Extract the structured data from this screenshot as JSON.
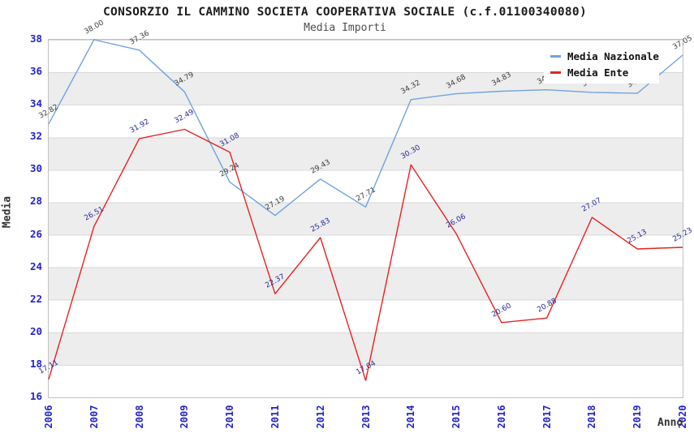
{
  "header": {
    "title": "CONSORZIO IL CAMMINO SOCIETA COOPERATIVA SOCIALE (c.f.01100340080)",
    "subtitle": "Media Importi"
  },
  "axes": {
    "y_title": "Media",
    "x_title": "Anno",
    "y_ticks": [
      38,
      36,
      34,
      32,
      30,
      28,
      26,
      24,
      22,
      20,
      18,
      16
    ],
    "x_ticks": [
      "2006",
      "2007",
      "2008",
      "2009",
      "2010",
      "2011",
      "2012",
      "2013",
      "2014",
      "2015",
      "2016",
      "2017",
      "2018",
      "2019",
      "2020"
    ]
  },
  "legend": {
    "items": [
      {
        "label": "Media Nazionale",
        "color": "#6fa3e0"
      },
      {
        "label": "Media Ente",
        "color": "#e62222"
      }
    ]
  },
  "colors": {
    "tick_label": "#2424cc",
    "nazionale_line": "#6fa3e0",
    "ente_line": "#e62222",
    "nazionale_point_label": "#3d3d3d",
    "ente_point_label": "#2a2a9a",
    "band_gray": "#ededed",
    "gridline": "#d8d8d8"
  },
  "chart_data": {
    "type": "line",
    "title": "CONSORZIO IL CAMMINO SOCIETA COOPERATIVA SOCIALE (c.f.01100340080)",
    "subtitle": "Media Importi",
    "xlabel": "Anno",
    "ylabel": "Media",
    "ylim": [
      16,
      38
    ],
    "y_tick_step": 2,
    "grid": "horizontal bands, gridlines every 2 units",
    "legend_position": "top-right, white box overlapping plot (hides 2017-2019 Media Nazionale labels)",
    "x": [
      "2006",
      "2007",
      "2008",
      "2009",
      "2010",
      "2011",
      "2012",
      "2013",
      "2014",
      "2015",
      "2016",
      "2017",
      "2018",
      "2019",
      "2020"
    ],
    "series": [
      {
        "name": "Media Nazionale",
        "color": "#6fa3e0",
        "label_color": "#3d3d3d",
        "values": [
          32.82,
          38.0,
          37.36,
          34.79,
          29.24,
          27.19,
          29.43,
          27.71,
          34.32,
          34.68,
          34.83,
          34.92,
          34.76,
          34.7,
          37.05
        ]
      },
      {
        "name": "Media Ente",
        "color": "#e62222",
        "label_color": "#2a2a9a",
        "values": [
          17.11,
          26.51,
          31.92,
          32.49,
          31.08,
          22.37,
          25.83,
          17.04,
          30.3,
          26.06,
          20.6,
          20.88,
          27.07,
          25.13,
          25.23
        ]
      }
    ]
  }
}
